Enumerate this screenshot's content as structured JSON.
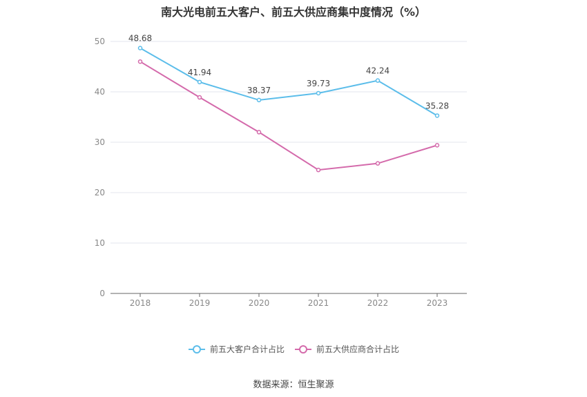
{
  "title": "南大光电前五大客户、前五大供应商集中度情况（%）",
  "source": "数据来源：恒生聚源",
  "chart_data": {
    "type": "line",
    "title": "南大光电前五大客户、前五大供应商集中度情况（%）",
    "categories": [
      "2018",
      "2019",
      "2020",
      "2021",
      "2022",
      "2023"
    ],
    "ylim": [
      0,
      50
    ],
    "yticks": [
      0,
      10,
      20,
      30,
      40,
      50
    ],
    "grid": true,
    "legend_position": "bottom",
    "series": [
      {
        "name": "前五大客户合计占比",
        "color": "#5bbdea",
        "values": [
          48.68,
          41.94,
          38.37,
          39.73,
          42.24,
          35.28
        ],
        "labels": [
          "48.68",
          "41.94",
          "38.37",
          "39.73",
          "42.24",
          "35.28"
        ],
        "show_labels": true
      },
      {
        "name": "前五大供应商合计占比",
        "color": "#d46aab",
        "values": [
          46.0,
          38.9,
          32.0,
          24.5,
          25.8,
          29.4
        ],
        "labels": [],
        "show_labels": false
      }
    ]
  }
}
